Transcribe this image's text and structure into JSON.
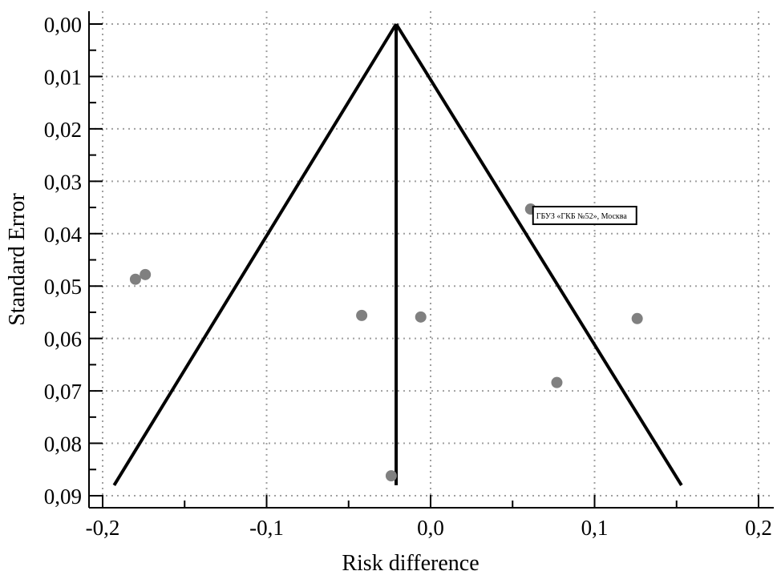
{
  "chart_data": {
    "type": "scatter",
    "subtype": "funnel-plot",
    "xlabel": "Risk difference",
    "ylabel": "Standard Error",
    "xlim": [
      -0.2,
      0.2
    ],
    "ylim": [
      0.0,
      0.09
    ],
    "y_inverted": true,
    "grid": true,
    "x_ticks": [
      -0.2,
      -0.1,
      0.0,
      0.1,
      0.2
    ],
    "x_tick_labels": [
      "-0,2",
      "-0,1",
      "0,0",
      "0,1",
      "0,2"
    ],
    "y_ticks": [
      0.0,
      0.01,
      0.02,
      0.03,
      0.04,
      0.05,
      0.06,
      0.07,
      0.08,
      0.09
    ],
    "y_tick_labels": [
      "0,00",
      "0,01",
      "0,02",
      "0,03",
      "0,04",
      "0,05",
      "0,06",
      "0,07",
      "0,08",
      "0,09"
    ],
    "points": [
      {
        "x": -0.18,
        "y": 0.0487
      },
      {
        "x": -0.174,
        "y": 0.0478
      },
      {
        "x": -0.042,
        "y": 0.0556
      },
      {
        "x": -0.006,
        "y": 0.0559
      },
      {
        "x": 0.126,
        "y": 0.0562
      },
      {
        "x": 0.077,
        "y": 0.0684
      },
      {
        "x": -0.024,
        "y": 0.0862
      },
      {
        "x": 0.061,
        "y": 0.0353
      }
    ],
    "pooled_estimate": -0.021,
    "funnel": {
      "apex": [
        -0.021,
        0.0
      ],
      "left_bottom": [
        -0.193,
        0.088
      ],
      "right_bottom": [
        0.153,
        0.088
      ]
    },
    "annotations": [
      {
        "text": "ГБУЗ «ГКБ №52», Москва",
        "point_index": 7
      }
    ],
    "colors": {
      "points": "#808080",
      "lines": "#000000",
      "grid": "#a0a0a0"
    }
  }
}
